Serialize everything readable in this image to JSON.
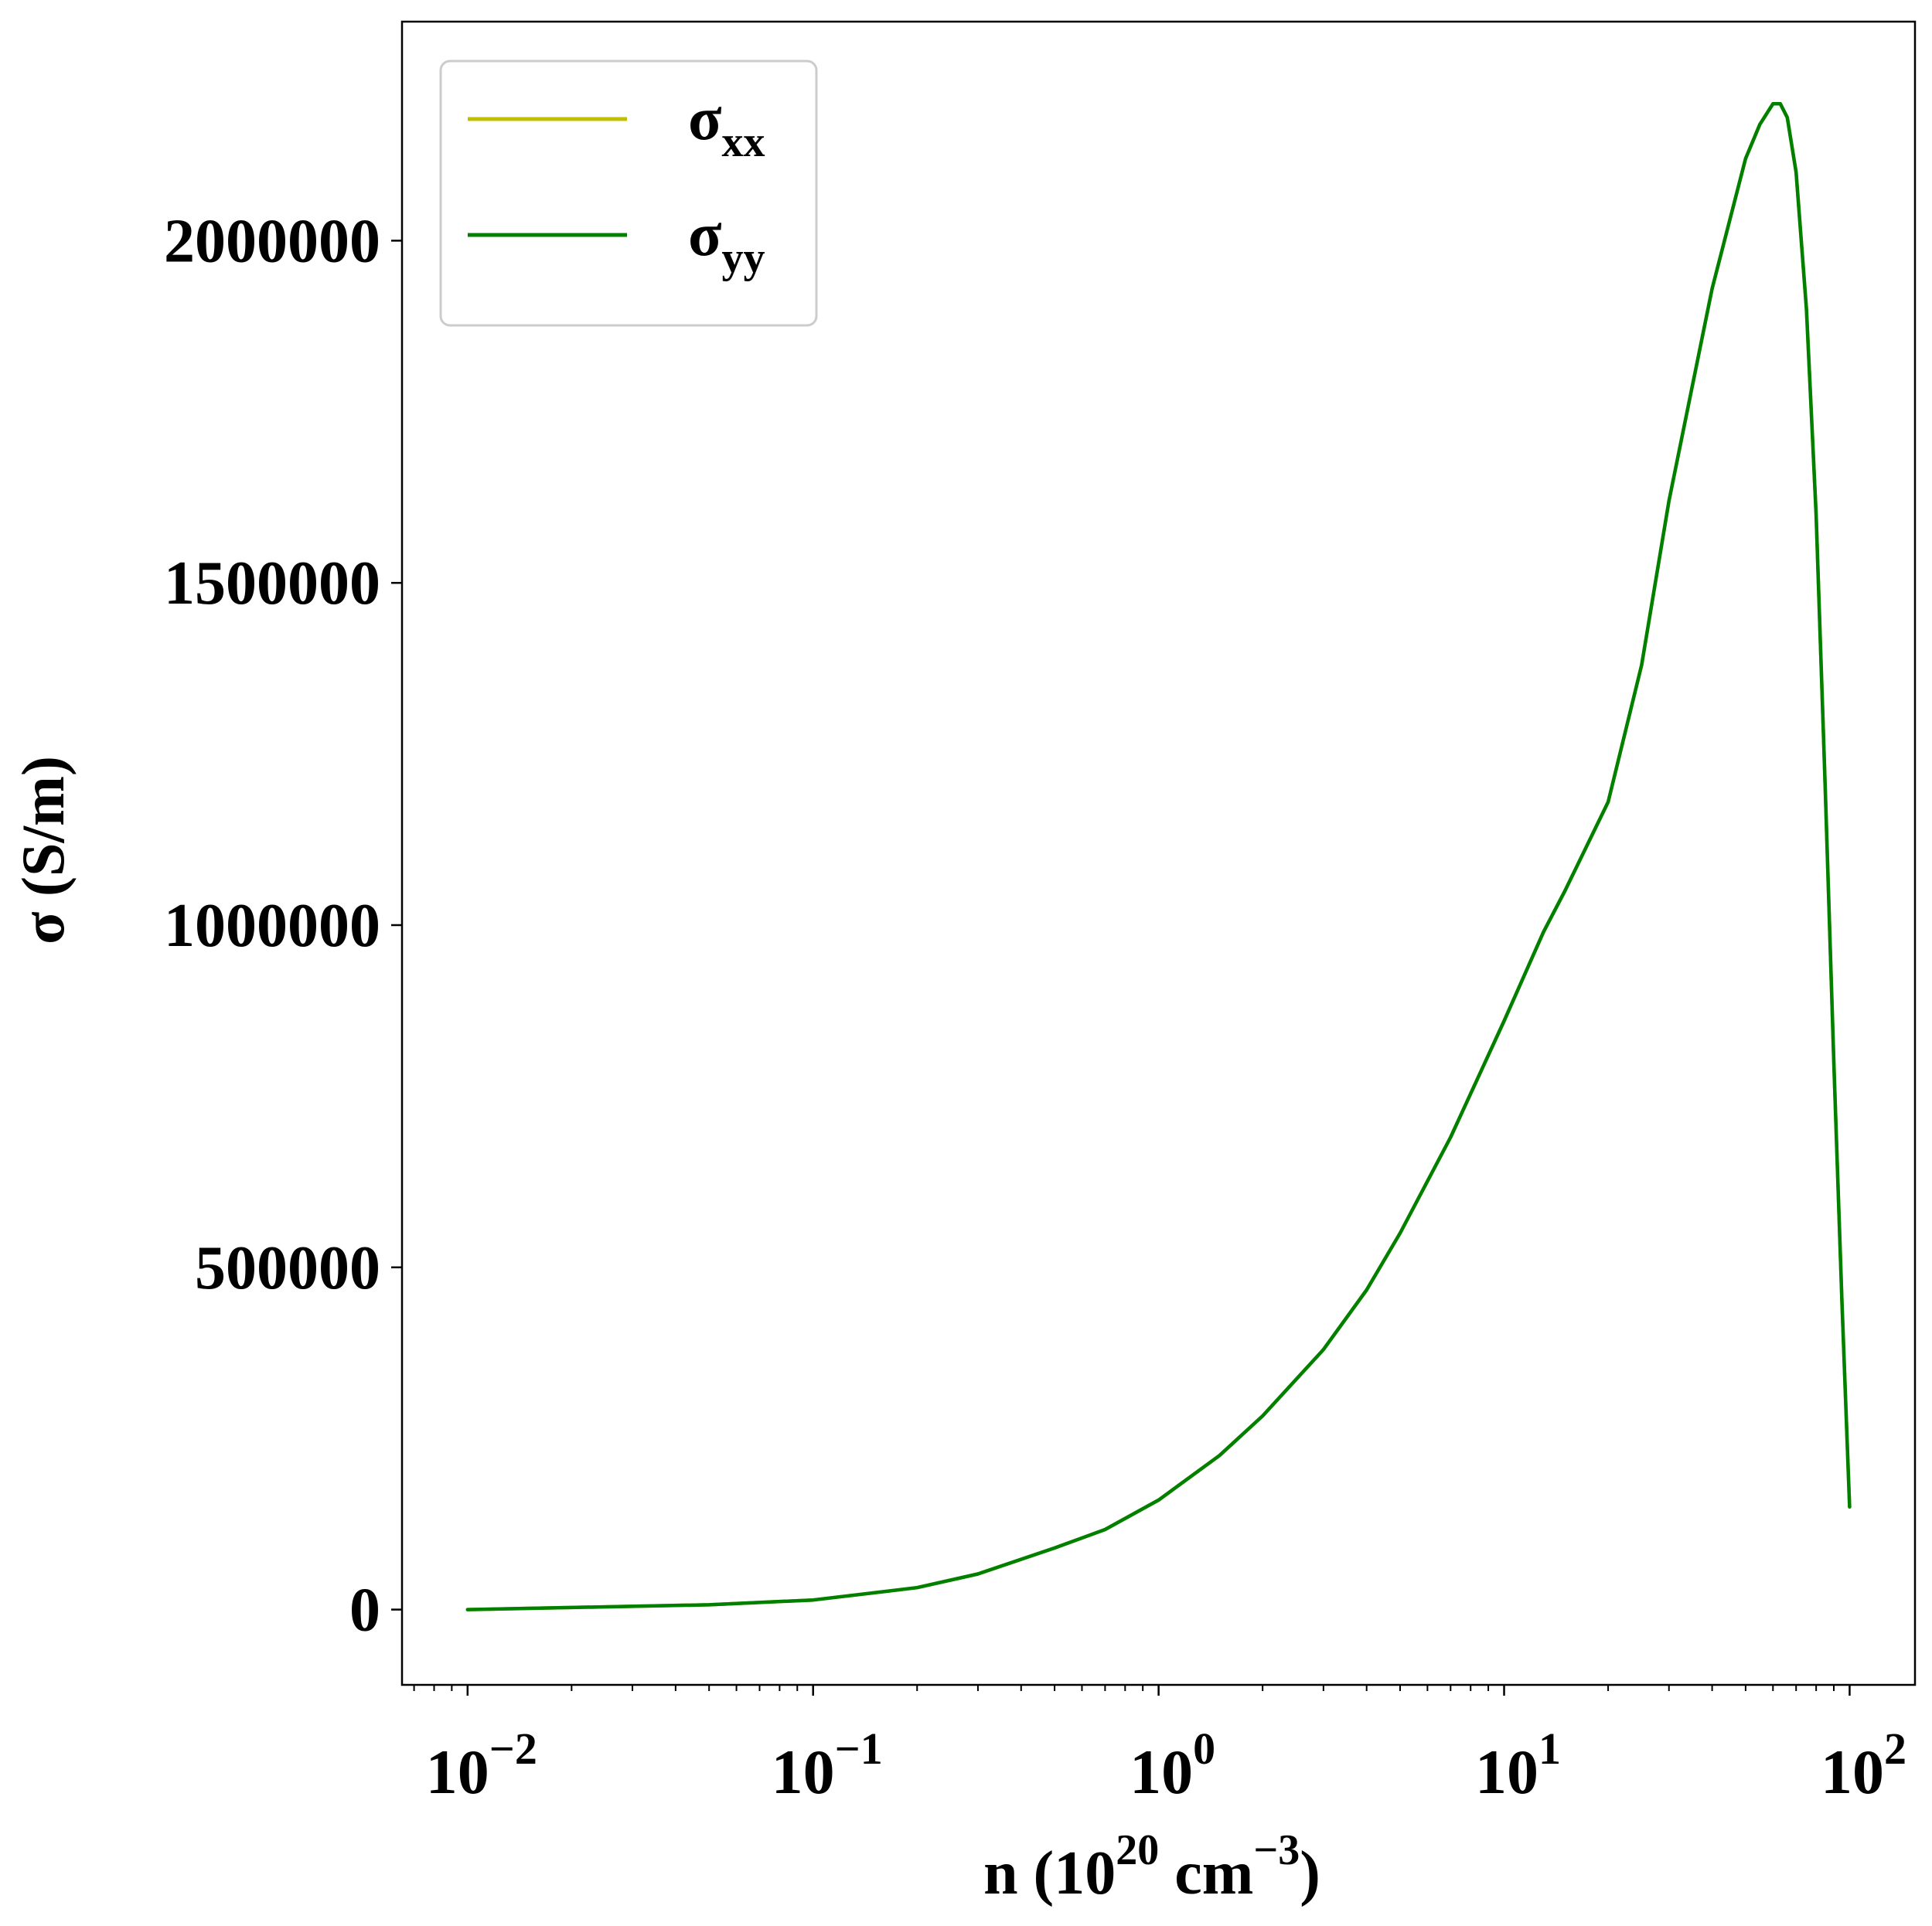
{
  "chart_data": {
    "type": "line",
    "title": "",
    "xlabel": {
      "base": "n (10",
      "exp1": "20",
      "mid": " cm",
      "exp2": "−3",
      "end": ")"
    },
    "ylabel": "σ (S/m)",
    "x_scale": "log",
    "xlim": [
      0.00646,
      154.6
    ],
    "ylim": [
      -110000,
      2320000
    ],
    "x_ticks": [
      {
        "base": "10",
        "exp": "−2",
        "value": 0.01
      },
      {
        "base": "10",
        "exp": "−1",
        "value": 0.1
      },
      {
        "base": "10",
        "exp": "0",
        "value": 1
      },
      {
        "base": "10",
        "exp": "1",
        "value": 10
      },
      {
        "base": "10",
        "exp": "2",
        "value": 100
      }
    ],
    "y_ticks": [
      {
        "label": "0",
        "value": 0
      },
      {
        "label": "500000",
        "value": 500000
      },
      {
        "label": "1000000",
        "value": 1000000
      },
      {
        "label": "1500000",
        "value": 1500000
      },
      {
        "label": "2000000",
        "value": 2000000
      }
    ],
    "grid": false,
    "legend_position": "top-left",
    "series": [
      {
        "name": "σxx",
        "name_base": "σ",
        "name_sub": "xx",
        "color": "#bfbf00",
        "x": [
          0.01,
          0.02,
          0.05,
          0.1,
          0.2,
          0.3,
          0.5,
          0.7,
          1,
          1.5,
          2,
          3,
          4,
          5,
          7,
          10,
          13,
          15,
          20,
          25,
          30,
          40,
          50,
          55,
          60,
          63,
          66,
          70,
          75,
          80,
          85,
          90,
          95,
          100
        ],
        "y": [
          0,
          3000,
          7000,
          14000,
          32000,
          52000,
          90000,
          117000,
          160000,
          225000,
          283000,
          380000,
          467000,
          550000,
          690000,
          860000,
          990000,
          1050000,
          1180000,
          1380000,
          1620000,
          1930000,
          2120000,
          2170000,
          2200000,
          2200000,
          2180000,
          2100000,
          1900000,
          1600000,
          1200000,
          800000,
          450000,
          150000
        ]
      },
      {
        "name": "σyy",
        "name_base": "σ",
        "name_sub": "yy",
        "color": "#008000",
        "x": [
          0.01,
          0.02,
          0.05,
          0.1,
          0.2,
          0.3,
          0.5,
          0.7,
          1,
          1.5,
          2,
          3,
          4,
          5,
          7,
          10,
          13,
          15,
          20,
          25,
          30,
          40,
          50,
          55,
          60,
          63,
          66,
          70,
          75,
          80,
          85,
          90,
          95,
          100
        ],
        "y": [
          0,
          3000,
          7000,
          14000,
          32000,
          52000,
          90000,
          117000,
          160000,
          225000,
          283000,
          380000,
          467000,
          550000,
          690000,
          860000,
          990000,
          1050000,
          1180000,
          1380000,
          1620000,
          1930000,
          2120000,
          2170000,
          2200000,
          2200000,
          2180000,
          2100000,
          1900000,
          1600000,
          1200000,
          800000,
          450000,
          150000
        ]
      }
    ]
  }
}
